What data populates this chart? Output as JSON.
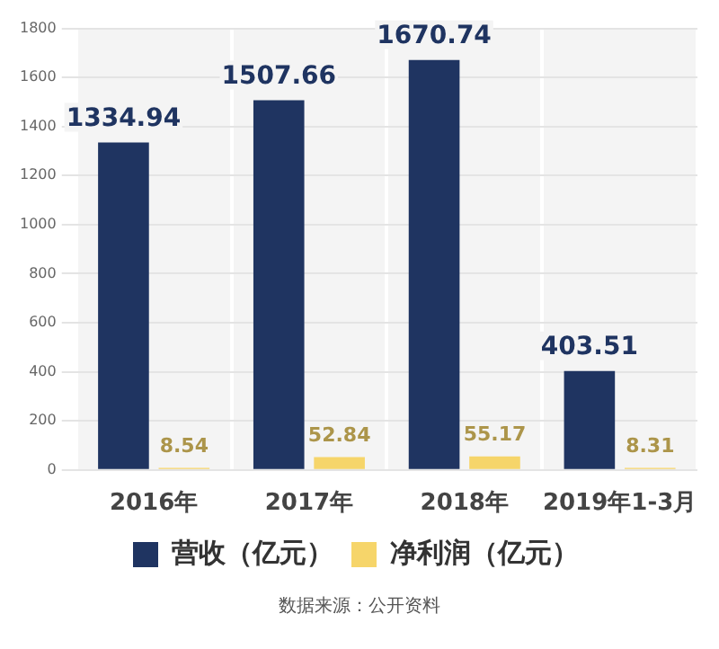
{
  "chart_data": {
    "type": "bar",
    "categories": [
      "2016年",
      "2017年",
      "2018年",
      "2019年1-3月"
    ],
    "series": [
      {
        "name": "营收（亿元）",
        "color": "#1f3461",
        "values": [
          1334.94,
          1507.66,
          1670.74,
          403.51
        ]
      },
      {
        "name": "净利润（亿元）",
        "color": "#f6d56a",
        "values": [
          8.54,
          52.84,
          55.17,
          8.31
        ]
      }
    ],
    "ylim": [
      0,
      1800
    ],
    "yticks": [
      0,
      200,
      400,
      600,
      800,
      1000,
      1200,
      1400,
      1600,
      1800
    ],
    "grid": true,
    "legend": "bottom",
    "data_labels": true,
    "annotations": [
      "数据来源：公开资料"
    ]
  }
}
